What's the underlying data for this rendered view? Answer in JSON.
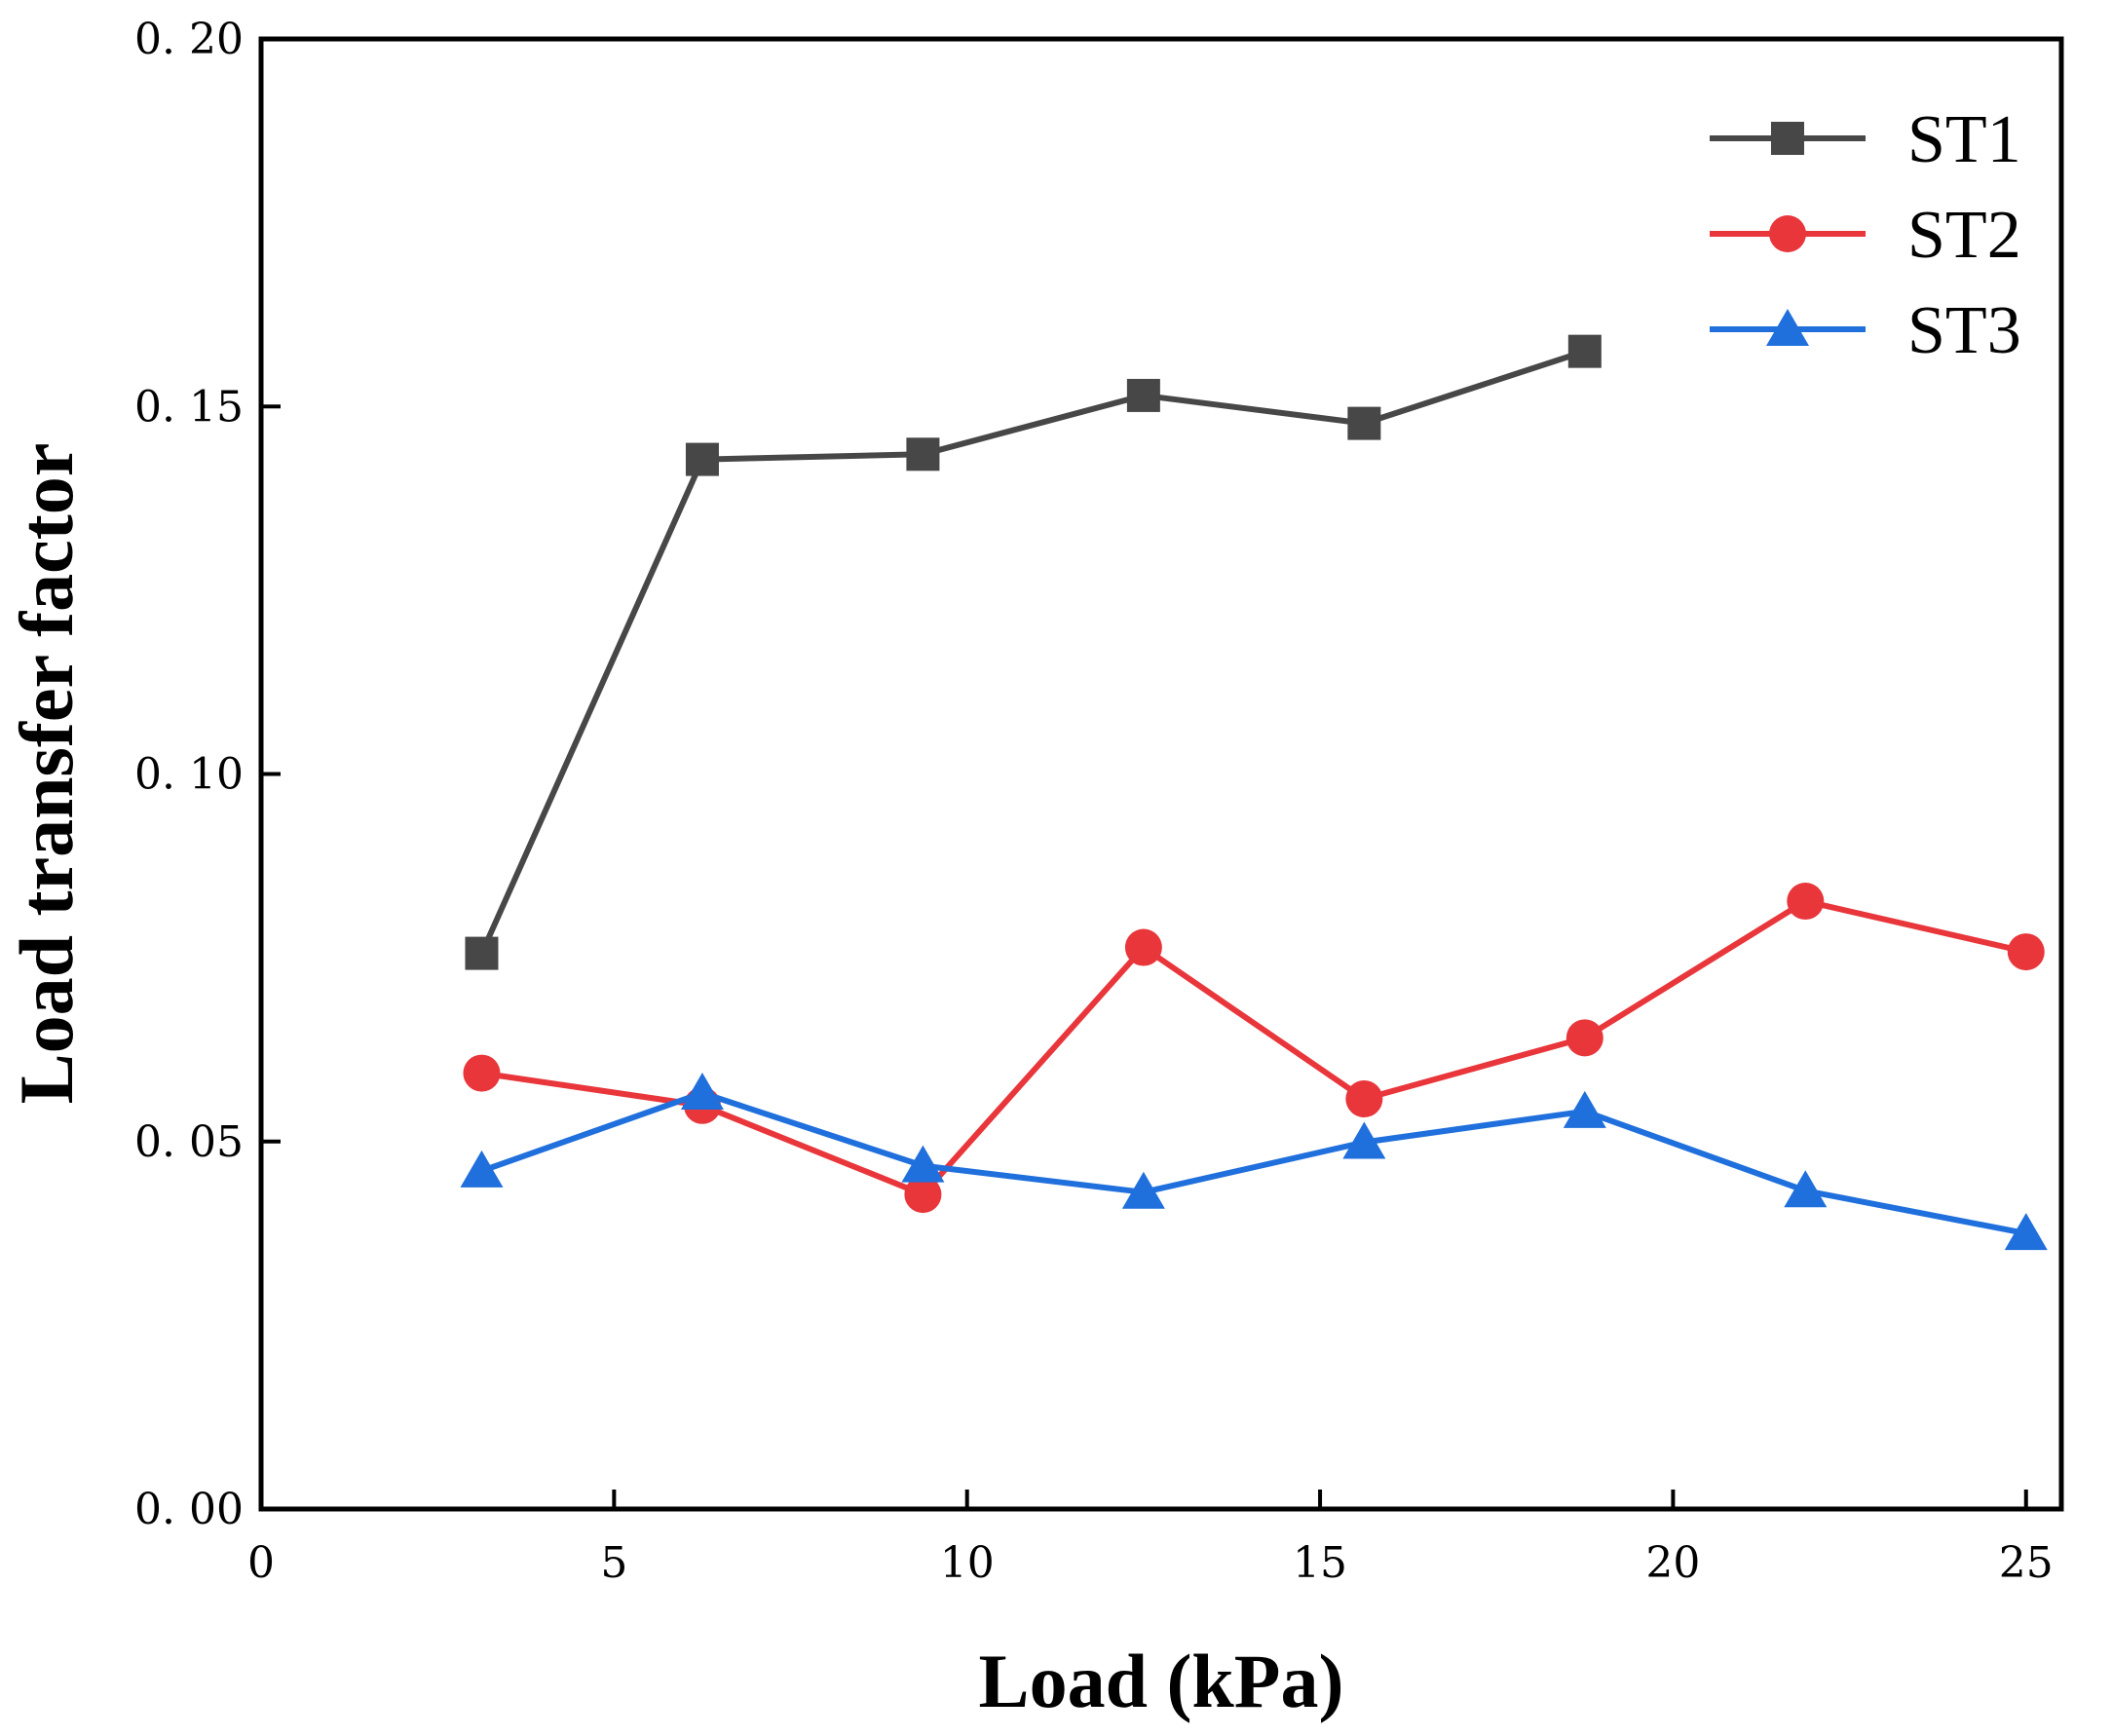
{
  "chart_data": {
    "type": "line",
    "xlabel": "Load (kPa)",
    "ylabel": "Load transfer factor",
    "xlim": [
      0,
      25.5
    ],
    "ylim": [
      0,
      0.2
    ],
    "xticks": [
      0,
      5,
      10,
      15,
      20,
      25
    ],
    "xtick_labels": [
      "0",
      "5",
      "10",
      "15",
      "20",
      "25"
    ],
    "yticks": [
      0,
      0.05,
      0.1,
      0.15,
      0.2
    ],
    "ytick_labels": [
      "0. 00",
      "0. 05",
      "0. 10",
      "0. 15",
      "0. 20"
    ],
    "legend_position": "top-right",
    "series": [
      {
        "name": "ST1",
        "color": "#474747",
        "marker": "square",
        "x": [
          3.125,
          6.25,
          9.375,
          12.5,
          15.625,
          18.75
        ],
        "y": [
          0.0756,
          0.1428,
          0.1435,
          0.1515,
          0.1477,
          0.1575
        ]
      },
      {
        "name": "ST2",
        "color": "#e8363b",
        "marker": "circle",
        "x": [
          3.125,
          6.25,
          9.375,
          12.5,
          15.625,
          18.75,
          21.875,
          25.0
        ],
        "y": [
          0.0593,
          0.0549,
          0.0428,
          0.0764,
          0.0558,
          0.0641,
          0.0827,
          0.0758
        ]
      },
      {
        "name": "ST3",
        "color": "#1f6fdc",
        "marker": "triangle",
        "x": [
          3.125,
          6.25,
          9.375,
          12.5,
          15.625,
          18.75,
          21.875,
          25.0
        ],
        "y": [
          0.046,
          0.0566,
          0.0467,
          0.0431,
          0.0499,
          0.0541,
          0.0433,
          0.0375
        ]
      }
    ]
  }
}
